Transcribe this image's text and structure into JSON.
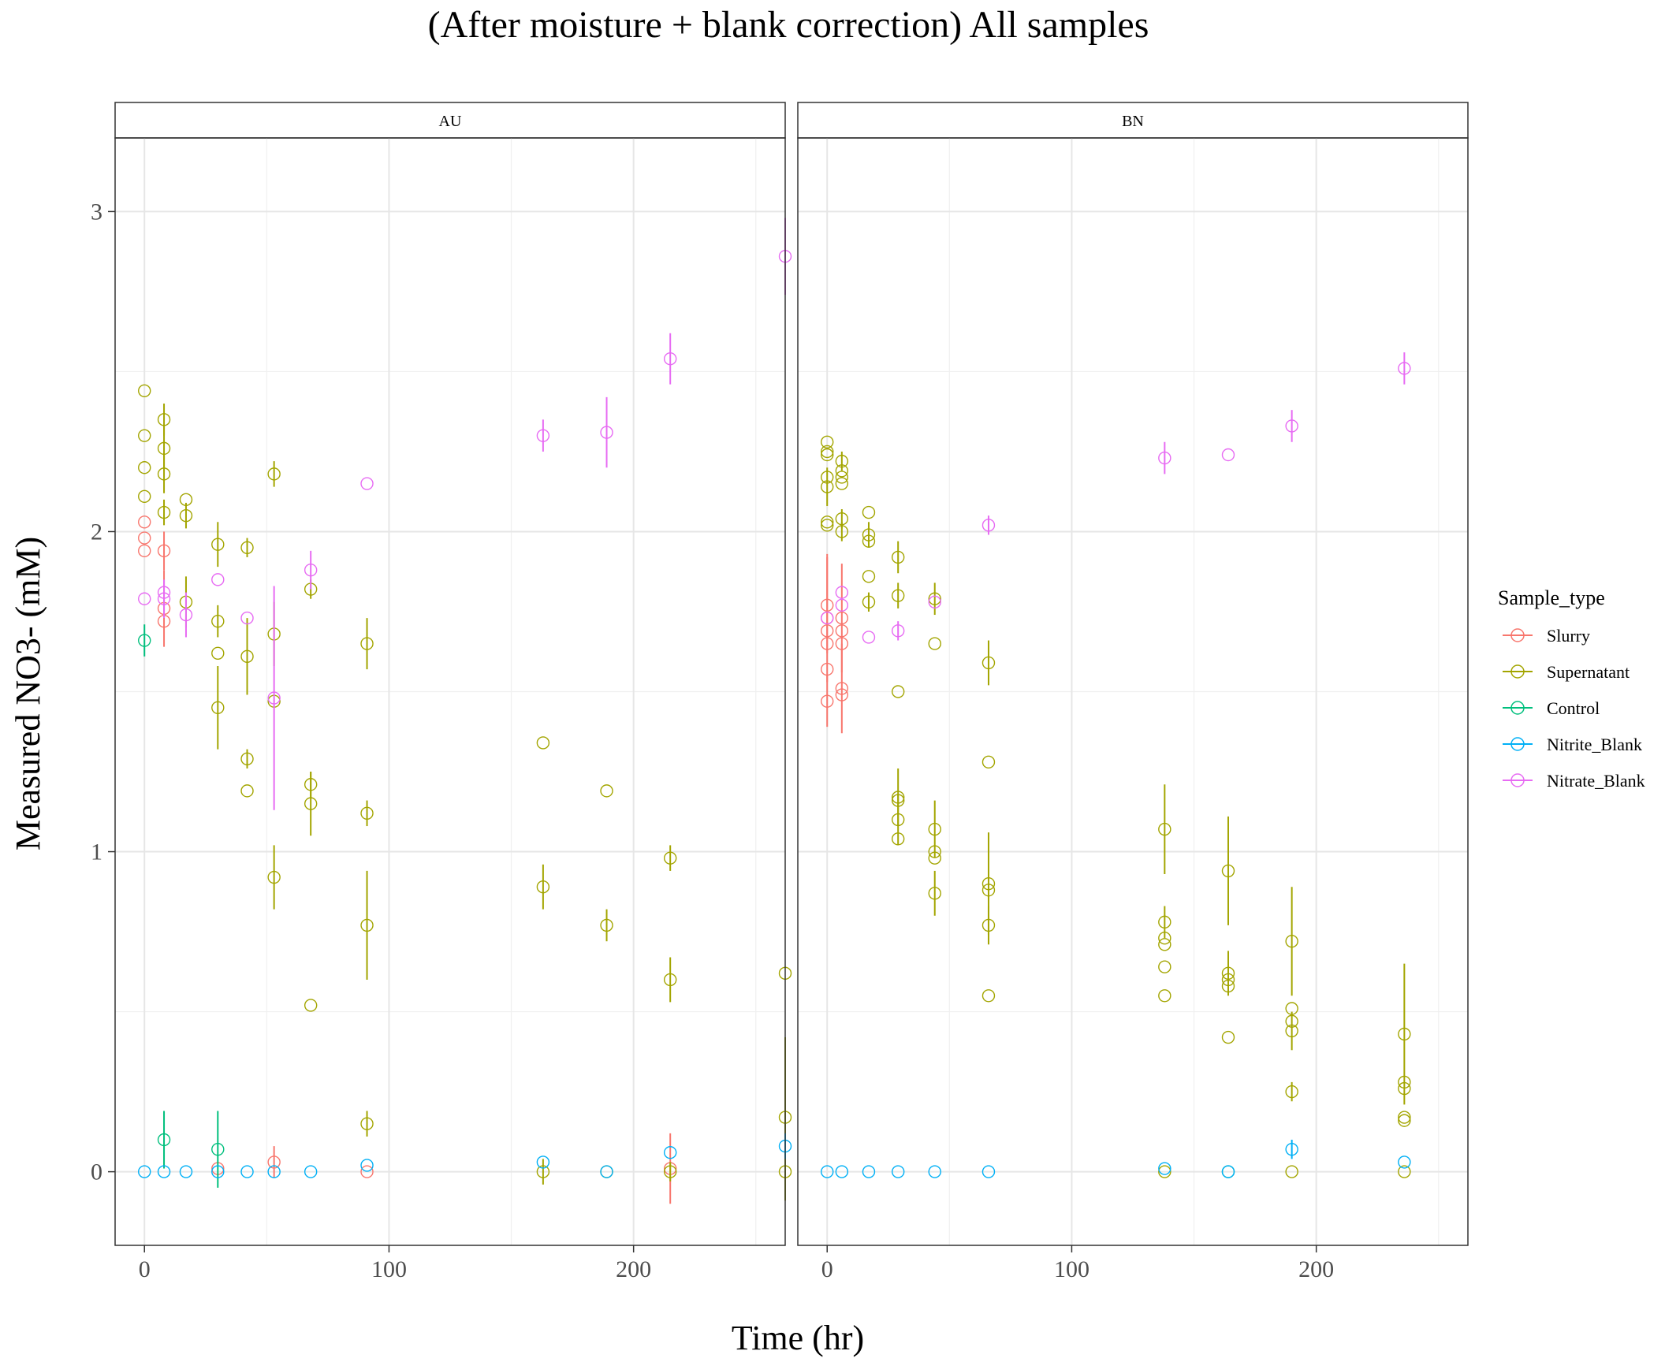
{
  "chart_data": {
    "type": "scatter",
    "title": "(After moisture + blank correction) All samples",
    "xlabel": "Time (hr)",
    "ylabel": "Measured NO3- (mM)",
    "xlim": [
      -12,
      262
    ],
    "ylim": [
      -0.23,
      3.23
    ],
    "x_ticks": [
      0,
      100,
      200
    ],
    "x_minor": [
      50,
      150,
      250
    ],
    "y_ticks": [
      0,
      1,
      2,
      3
    ],
    "y_minor": [
      0.5,
      1.5,
      2.5
    ],
    "x_tick_labels": [
      "0",
      "100",
      "200"
    ],
    "y_tick_labels": [
      "0",
      "1",
      "2",
      "3"
    ],
    "legend_title": "Sample_type",
    "legend_position": "right",
    "series_colors": {
      "Slurry": "#F8766D",
      "Supernatant": "#A3A500",
      "Control": "#00BF7D",
      "Nitrite_Blank": "#00B0F6",
      "Nitrate_Blank": "#E76BF3"
    },
    "legend": [
      "Slurry",
      "Supernatant",
      "Control",
      "Nitrite_Blank",
      "Nitrate_Blank"
    ],
    "panels": [
      {
        "label": "AU",
        "series": [
          {
            "name": "Slurry",
            "points": [
              [
                0,
                2.03,
                0
              ],
              [
                0,
                1.98,
                0
              ],
              [
                0,
                1.94,
                0
              ],
              [
                8,
                1.94,
                0.06
              ],
              [
                8,
                1.76,
                0.12
              ],
              [
                8,
                1.72,
                0
              ],
              [
                30,
                0.01,
                0
              ],
              [
                53,
                0.03,
                0.05
              ],
              [
                91,
                0,
                0
              ],
              [
                215,
                0.01,
                0.11
              ]
            ]
          },
          {
            "name": "Supernatant",
            "points": [
              [
                0,
                2.44,
                0
              ],
              [
                0,
                2.3,
                0
              ],
              [
                0,
                2.2,
                0
              ],
              [
                0,
                2.11,
                0
              ],
              [
                8,
                2.35,
                0.05
              ],
              [
                8,
                2.26,
                0.07
              ],
              [
                8,
                2.18,
                0.06
              ],
              [
                8,
                2.06,
                0.04
              ],
              [
                17,
                2.1,
                0
              ],
              [
                17,
                2.05,
                0.04
              ],
              [
                17,
                1.78,
                0.08
              ],
              [
                30,
                1.96,
                0.07
              ],
              [
                30,
                1.72,
                0.05
              ],
              [
                30,
                1.62,
                0
              ],
              [
                30,
                1.45,
                0.13
              ],
              [
                42,
                1.95,
                0.03
              ],
              [
                42,
                1.61,
                0.12
              ],
              [
                42,
                1.29,
                0.03
              ],
              [
                42,
                1.19,
                0
              ],
              [
                53,
                2.18,
                0.04
              ],
              [
                53,
                1.68,
                0.1
              ],
              [
                53,
                1.47,
                0
              ],
              [
                53,
                0.92,
                0.1
              ],
              [
                68,
                1.82,
                0.03
              ],
              [
                68,
                1.21,
                0.04
              ],
              [
                68,
                1.15,
                0.1
              ],
              [
                68,
                0.52,
                0
              ],
              [
                91,
                1.65,
                0.08
              ],
              [
                91,
                1.12,
                0.04
              ],
              [
                91,
                0.77,
                0.17
              ],
              [
                91,
                0.15,
                0.04
              ],
              [
                163,
                1.34,
                0
              ],
              [
                163,
                0.89,
                0.07
              ],
              [
                163,
                0,
                0.04
              ],
              [
                189,
                1.19,
                0
              ],
              [
                189,
                0.77,
                0.05
              ],
              [
                189,
                0,
                0
              ],
              [
                215,
                0.98,
                0.04
              ],
              [
                215,
                0.6,
                0.07
              ],
              [
                215,
                0,
                0.03
              ],
              [
                262,
                0.62,
                0
              ],
              [
                262,
                0.17,
                0.25
              ],
              [
                262,
                0,
                0.09
              ]
            ]
          },
          {
            "name": "Control",
            "points": [
              [
                0,
                1.66,
                0.05
              ],
              [
                8,
                0.1,
                0.09
              ],
              [
                30,
                0.07,
                0.12
              ]
            ]
          },
          {
            "name": "Nitrite_Blank",
            "points": [
              [
                0,
                0,
                0
              ],
              [
                8,
                0,
                0
              ],
              [
                17,
                0,
                0
              ],
              [
                30,
                0,
                0
              ],
              [
                42,
                0,
                0
              ],
              [
                53,
                0,
                0
              ],
              [
                68,
                0,
                0
              ],
              [
                91,
                0.02,
                0
              ],
              [
                163,
                0.03,
                0
              ],
              [
                189,
                0,
                0
              ],
              [
                215,
                0.06,
                0
              ],
              [
                262,
                0.08,
                0.04
              ]
            ]
          },
          {
            "name": "Nitrate_Blank",
            "points": [
              [
                0,
                1.79,
                0
              ],
              [
                8,
                1.81,
                0
              ],
              [
                8,
                1.79,
                0.06
              ],
              [
                17,
                1.74,
                0.07
              ],
              [
                30,
                1.85,
                0
              ],
              [
                42,
                1.73,
                0
              ],
              [
                53,
                1.48,
                0.35
              ],
              [
                68,
                1.88,
                0.06
              ],
              [
                91,
                2.15,
                0
              ],
              [
                163,
                2.3,
                0.05
              ],
              [
                189,
                2.31,
                0.11
              ],
              [
                215,
                2.54,
                0.08
              ],
              [
                262,
                2.86,
                0.12
              ]
            ]
          }
        ]
      },
      {
        "label": "BN",
        "series": [
          {
            "name": "Slurry",
            "points": [
              [
                0,
                1.77,
                0.15
              ],
              [
                0,
                1.73,
                0.2
              ],
              [
                0,
                1.69,
                0
              ],
              [
                0,
                1.65,
                0
              ],
              [
                0,
                1.57,
                0
              ],
              [
                0,
                1.47,
                0.08
              ],
              [
                6,
                1.73,
                0.17
              ],
              [
                6,
                1.69,
                0
              ],
              [
                6,
                1.65,
                0
              ],
              [
                6,
                1.51,
                0.14
              ],
              [
                6,
                1.49,
                0
              ]
            ]
          },
          {
            "name": "Supernatant",
            "points": [
              [
                0,
                2.28,
                0
              ],
              [
                0,
                2.25,
                0
              ],
              [
                0,
                2.24,
                0
              ],
              [
                0,
                2.17,
                0
              ],
              [
                0,
                2.14,
                0.06
              ],
              [
                0,
                2.03,
                0
              ],
              [
                0,
                2.02,
                0
              ],
              [
                6,
                2.22,
                0.03
              ],
              [
                6,
                2.19,
                0
              ],
              [
                6,
                2.17,
                0
              ],
              [
                6,
                2.15,
                0
              ],
              [
                6,
                2.04,
                0.03
              ],
              [
                6,
                2.0,
                0.03
              ],
              [
                17,
                2.06,
                0
              ],
              [
                17,
                1.99,
                0.04
              ],
              [
                17,
                1.97,
                0
              ],
              [
                17,
                1.86,
                0
              ],
              [
                17,
                1.78,
                0.03
              ],
              [
                29,
                1.92,
                0.05
              ],
              [
                29,
                1.8,
                0.04
              ],
              [
                29,
                1.5,
                0
              ],
              [
                29,
                1.17,
                0.09
              ],
              [
                29,
                1.16,
                0
              ],
              [
                29,
                1.1,
                0.08
              ],
              [
                29,
                1.04,
                0
              ],
              [
                44,
                1.79,
                0.05
              ],
              [
                44,
                1.65,
                0
              ],
              [
                44,
                1.07,
                0.09
              ],
              [
                44,
                1.0,
                0
              ],
              [
                44,
                0.98,
                0
              ],
              [
                44,
                0.87,
                0.07
              ],
              [
                66,
                1.59,
                0.07
              ],
              [
                66,
                1.28,
                0
              ],
              [
                66,
                0.9,
                0.16
              ],
              [
                66,
                0.88,
                0
              ],
              [
                66,
                0.77,
                0.06
              ],
              [
                66,
                0.55,
                0
              ],
              [
                138,
                1.07,
                0.14
              ],
              [
                138,
                0.78,
                0.05
              ],
              [
                138,
                0.73,
                0
              ],
              [
                138,
                0.71,
                0
              ],
              [
                138,
                0.64,
                0
              ],
              [
                138,
                0.55,
                0
              ],
              [
                138,
                0,
                0
              ],
              [
                164,
                0.94,
                0.17
              ],
              [
                164,
                0.62,
                0.07
              ],
              [
                164,
                0.6,
                0
              ],
              [
                164,
                0.58,
                0
              ],
              [
                164,
                0.42,
                0
              ],
              [
                190,
                0.72,
                0.17
              ],
              [
                190,
                0.51,
                0
              ],
              [
                190,
                0.47,
                0
              ],
              [
                190,
                0.44,
                0.06
              ],
              [
                190,
                0.25,
                0.03
              ],
              [
                190,
                0,
                0
              ],
              [
                236,
                0.43,
                0.22
              ],
              [
                236,
                0.28,
                0
              ],
              [
                236,
                0.26,
                0
              ],
              [
                236,
                0.17,
                0
              ],
              [
                236,
                0.16,
                0
              ],
              [
                236,
                0,
                0
              ]
            ]
          },
          {
            "name": "Control",
            "points": [
              [
                164,
                0,
                0
              ]
            ]
          },
          {
            "name": "Nitrite_Blank",
            "points": [
              [
                0,
                0,
                0
              ],
              [
                6,
                0,
                0
              ],
              [
                17,
                0,
                0
              ],
              [
                29,
                0,
                0
              ],
              [
                44,
                0,
                0
              ],
              [
                66,
                0,
                0
              ],
              [
                138,
                0.01,
                0
              ],
              [
                164,
                0,
                0
              ],
              [
                190,
                0.07,
                0.03
              ],
              [
                236,
                0.03,
                0
              ]
            ]
          },
          {
            "name": "Nitrate_Blank",
            "points": [
              [
                0,
                1.73,
                0
              ],
              [
                6,
                1.81,
                0
              ],
              [
                6,
                1.77,
                0
              ],
              [
                17,
                1.67,
                0
              ],
              [
                29,
                1.69,
                0.03
              ],
              [
                44,
                1.78,
                0
              ],
              [
                66,
                2.02,
                0.03
              ],
              [
                138,
                2.23,
                0.05
              ],
              [
                164,
                2.24,
                0
              ],
              [
                190,
                2.33,
                0.05
              ],
              [
                236,
                2.51,
                0.05
              ]
            ]
          }
        ]
      }
    ]
  }
}
